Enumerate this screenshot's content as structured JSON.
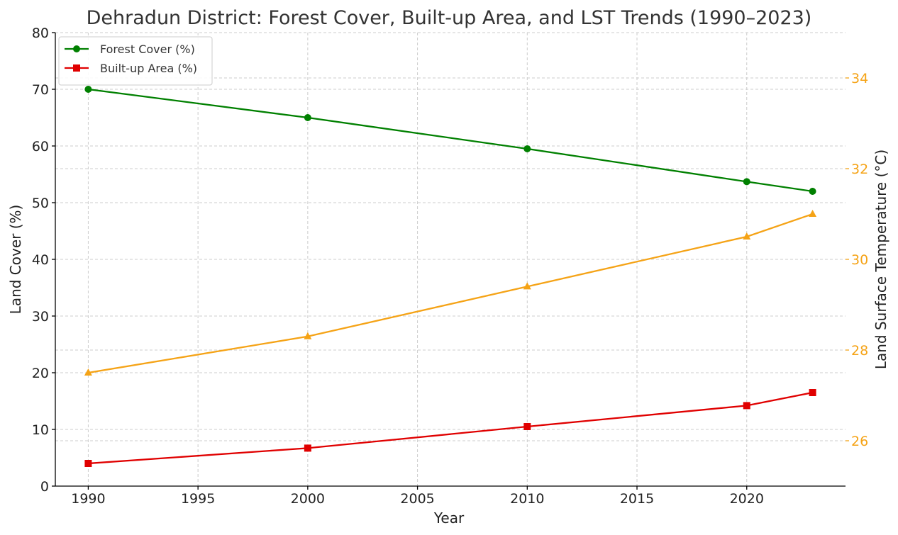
{
  "chart_data": {
    "type": "line",
    "title": "Dehradun District: Forest Cover, Built-up Area, and LST Trends (1990–2023)",
    "xlabel": "Year",
    "ylabel": "Land Cover (%)",
    "y2label": "Land Surface Temperature (°C)",
    "xlim": [
      1988.5,
      2024.5
    ],
    "ylim": [
      0,
      80
    ],
    "y2lim": [
      25,
      35
    ],
    "xticks": [
      1990,
      1995,
      2000,
      2005,
      2010,
      2015,
      2020
    ],
    "yticks": [
      0,
      10,
      20,
      30,
      40,
      50,
      60,
      70,
      80
    ],
    "y2ticks": [
      26,
      28,
      30,
      32,
      34
    ],
    "grid": true,
    "legend_position": "top-left",
    "x": [
      1990,
      2000,
      2010,
      2020,
      2023
    ],
    "series": [
      {
        "name": "Forest Cover (%)",
        "axis": "left",
        "color": "#008000",
        "marker": "circle",
        "values": [
          70,
          65,
          59.5,
          53.7,
          52
        ]
      },
      {
        "name": "Built-up Area (%)",
        "axis": "left",
        "color": "#e00000",
        "marker": "square",
        "values": [
          4,
          6.7,
          10.5,
          14.2,
          16.5
        ]
      },
      {
        "axis": "right",
        "color": "#f5a316",
        "marker": "triangle",
        "values": [
          27.5,
          28.3,
          29.4,
          30.5,
          31
        ]
      }
    ]
  }
}
